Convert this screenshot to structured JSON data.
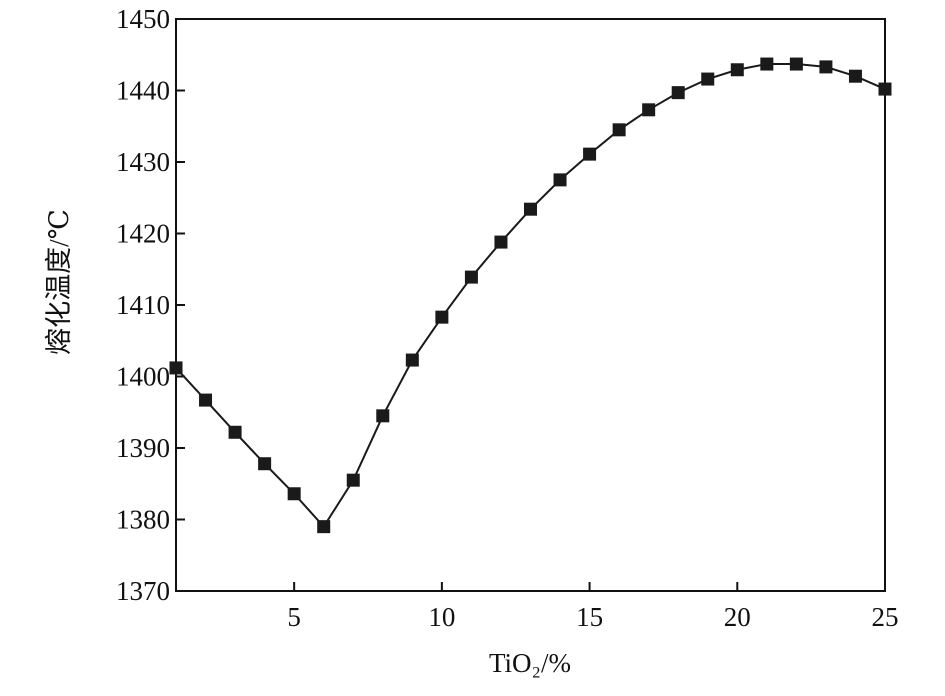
{
  "chart_data": {
    "type": "line",
    "x_label": "TiO₂/%",
    "y_label": "熔化温度/℃",
    "x": [
      1,
      2,
      3,
      4,
      5,
      6,
      7,
      8,
      9,
      10,
      11,
      12,
      13,
      14,
      15,
      16,
      17,
      18,
      19,
      20,
      21,
      22,
      23,
      24,
      25
    ],
    "series": [
      {
        "color": "#1a1a1a",
        "values": [
          1401.2,
          1396.7,
          1392.2,
          1387.8,
          1383.6,
          1379.0,
          1385.5,
          1394.5,
          1402.3,
          1408.3,
          1413.9,
          1418.8,
          1423.4,
          1427.5,
          1431.1,
          1434.5,
          1437.3,
          1439.7,
          1441.6,
          1442.9,
          1443.7,
          1443.7,
          1443.3,
          1442.0,
          1440.2
        ]
      }
    ],
    "xlim": [
      1,
      25
    ],
    "xticks": [
      5,
      10,
      15,
      20,
      25
    ],
    "ylim": [
      1370,
      1450
    ],
    "yticks": [
      1370,
      1380,
      1390,
      1400,
      1410,
      1420,
      1430,
      1440,
      1450
    ]
  }
}
